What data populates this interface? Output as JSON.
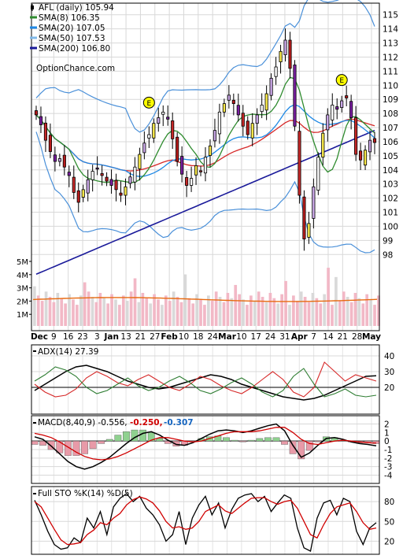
{
  "chart_data": [
    {
      "type": "candlestick",
      "panel": "price",
      "legend": [
        {
          "label": "AFL (daily) 105.94",
          "color": "#000000",
          "kind": "candle"
        },
        {
          "label": "SMA(8) 106.35",
          "color": "#2e8b2e",
          "kind": "line"
        },
        {
          "label": "SMA(20) 107.05",
          "color": "#1e88e5",
          "kind": "line"
        },
        {
          "label": "SMA(50) 107.53",
          "color": "#7fb8e8",
          "kind": "line"
        },
        {
          "label": "SMA(200) 106.80",
          "color": "#1a1a9a",
          "kind": "line"
        }
      ],
      "watermark": "OptionChance.com",
      "y_ticks": [
        98,
        99,
        100,
        101,
        102,
        103,
        104,
        105,
        106,
        107,
        108,
        109,
        110,
        111,
        112,
        113,
        114,
        115
      ],
      "ylim": [
        97.4,
        115.6
      ],
      "volume_ticks": [
        "1M",
        "2M",
        "3M",
        "4M",
        "5M"
      ],
      "x_labels": [
        "Dec",
        "9",
        "16",
        "23",
        "3",
        "Jan",
        "13",
        "21",
        "27",
        "Feb",
        "10",
        "18",
        "24",
        "Mar",
        "10",
        "17",
        "24",
        "31",
        "Apr",
        "7",
        "14",
        "21",
        "28",
        "May"
      ],
      "bold_x_labels": [
        "Dec",
        "Jan",
        "Feb",
        "Mar",
        "Apr",
        "May"
      ],
      "earnings_marker": "E",
      "close_series": [
        107.9,
        107.2,
        106.1,
        105.3,
        104.6,
        104.8,
        104.2,
        103.6,
        102.4,
        101.7,
        102.6,
        103.3,
        103.9,
        104.1,
        103.6,
        103.2,
        102.9,
        102.6,
        102.2,
        102.8,
        103.5,
        104.2,
        105.1,
        105.9,
        106.5,
        107.3,
        107.7,
        108.1,
        107.6,
        106.2,
        104.6,
        103.7,
        102.9,
        103.4,
        104.3,
        103.9,
        104.9,
        105.7,
        106.8,
        108.1,
        108.7,
        109.3,
        108.7,
        107.9,
        107.1,
        106.5,
        107.3,
        107.9,
        108.6,
        109.4,
        110.5,
        111.3,
        112.4,
        113.2,
        111.2,
        107.1,
        102.2,
        99.1,
        100.2,
        102.8,
        104.9,
        106.6,
        107.9,
        108.6,
        108.3,
        108.9,
        109.1,
        107.7,
        105.1,
        104.7,
        105.4,
        106.1,
        105.94
      ]
    },
    {
      "type": "line",
      "panel": "adx",
      "label": "ADX(14) 27.39",
      "y_ticks": [
        20,
        30,
        40
      ],
      "series": [
        {
          "name": "ADX",
          "color": "#000000",
          "values": [
            18,
            22,
            26,
            30,
            33,
            34,
            32,
            30,
            27,
            24,
            22,
            20,
            19,
            20,
            22,
            24,
            26,
            28,
            27,
            25,
            22,
            20,
            18,
            16,
            14,
            13,
            12,
            13,
            15,
            18,
            21,
            24,
            27,
            27.39
          ]
        },
        {
          "name": "+DI",
          "color": "#d62828",
          "values": [
            22,
            17,
            14,
            15,
            19,
            26,
            30,
            27,
            23,
            21,
            25,
            28,
            24,
            20,
            18,
            22,
            27,
            25,
            21,
            18,
            16,
            20,
            25,
            30,
            25,
            17,
            14,
            20,
            36,
            30,
            24,
            28,
            26,
            24
          ]
        },
        {
          "name": "-DI",
          "color": "#2e7d32",
          "values": [
            24,
            28,
            33,
            31,
            27,
            20,
            16,
            18,
            22,
            26,
            21,
            18,
            20,
            24,
            27,
            23,
            18,
            16,
            19,
            23,
            26,
            22,
            17,
            14,
            18,
            27,
            32,
            22,
            14,
            16,
            19,
            15,
            14,
            15
          ]
        }
      ]
    },
    {
      "type": "line+histogram",
      "panel": "macd",
      "label": "MACD(8,40,9) -0.556,",
      "signal_label": "-0.250,",
      "signal_color": "#d00000",
      "hist_label": "-0.307",
      "hist_color": "#1565c0",
      "y_ticks": [
        -4,
        -3,
        -2,
        -1,
        0,
        1,
        2
      ],
      "series": [
        {
          "name": "MACD",
          "color": "#000000",
          "values": [
            0.5,
            0.2,
            -0.6,
            -1.5,
            -2.4,
            -3.0,
            -3.3,
            -3.0,
            -2.5,
            -1.9,
            -1.1,
            -0.3,
            0.4,
            0.9,
            1.1,
            0.7,
            0.1,
            -0.4,
            -0.5,
            -0.2,
            0.3,
            0.8,
            1.2,
            1.3,
            1.2,
            1.0,
            1.2,
            1.5,
            1.8,
            2.0,
            1.2,
            -0.5,
            -1.9,
            -1.4,
            -0.5,
            0.3,
            0.4,
            0.2,
            -0.1,
            -0.3,
            -0.4,
            -0.556
          ]
        },
        {
          "name": "Signal",
          "color": "#d00000",
          "values": [
            0.9,
            0.7,
            0.4,
            -0.1,
            -0.7,
            -1.3,
            -1.8,
            -2.1,
            -2.2,
            -2.1,
            -1.8,
            -1.4,
            -0.9,
            -0.4,
            0.1,
            0.4,
            0.4,
            0.2,
            0.0,
            -0.1,
            0.0,
            0.3,
            0.6,
            0.9,
            1.1,
            1.1,
            1.1,
            1.2,
            1.4,
            1.6,
            1.6,
            1.0,
            0.2,
            -0.3,
            -0.4,
            -0.2,
            0.0,
            0.1,
            0.0,
            -0.1,
            -0.2,
            -0.25
          ]
        }
      ]
    },
    {
      "type": "line",
      "panel": "stochastic",
      "label": "Full STO %K(14) %D(5)",
      "y_ticks": [
        20,
        50,
        80
      ],
      "series": [
        {
          "name": "%K",
          "color": "#000000",
          "values": [
            82,
            60,
            35,
            15,
            8,
            10,
            25,
            18,
            55,
            40,
            65,
            30,
            72,
            85,
            92,
            80,
            88,
            70,
            60,
            45,
            20,
            30,
            65,
            15,
            55,
            75,
            88,
            60,
            78,
            40,
            68,
            85,
            90,
            92,
            80,
            88,
            65,
            78,
            90,
            85,
            40,
            10,
            5,
            55,
            78,
            82,
            60,
            85,
            80,
            35,
            15,
            40,
            48
          ]
        },
        {
          "name": "%D",
          "color": "#d00000",
          "values": [
            80,
            72,
            55,
            38,
            22,
            15,
            16,
            18,
            30,
            37,
            48,
            45,
            55,
            62,
            75,
            83,
            87,
            84,
            78,
            66,
            50,
            40,
            42,
            38,
            40,
            50,
            65,
            70,
            75,
            66,
            62,
            70,
            78,
            85,
            86,
            86,
            80,
            76,
            80,
            82,
            70,
            50,
            30,
            25,
            45,
            62,
            72,
            75,
            78,
            65,
            48,
            38,
            40
          ]
        }
      ]
    }
  ]
}
